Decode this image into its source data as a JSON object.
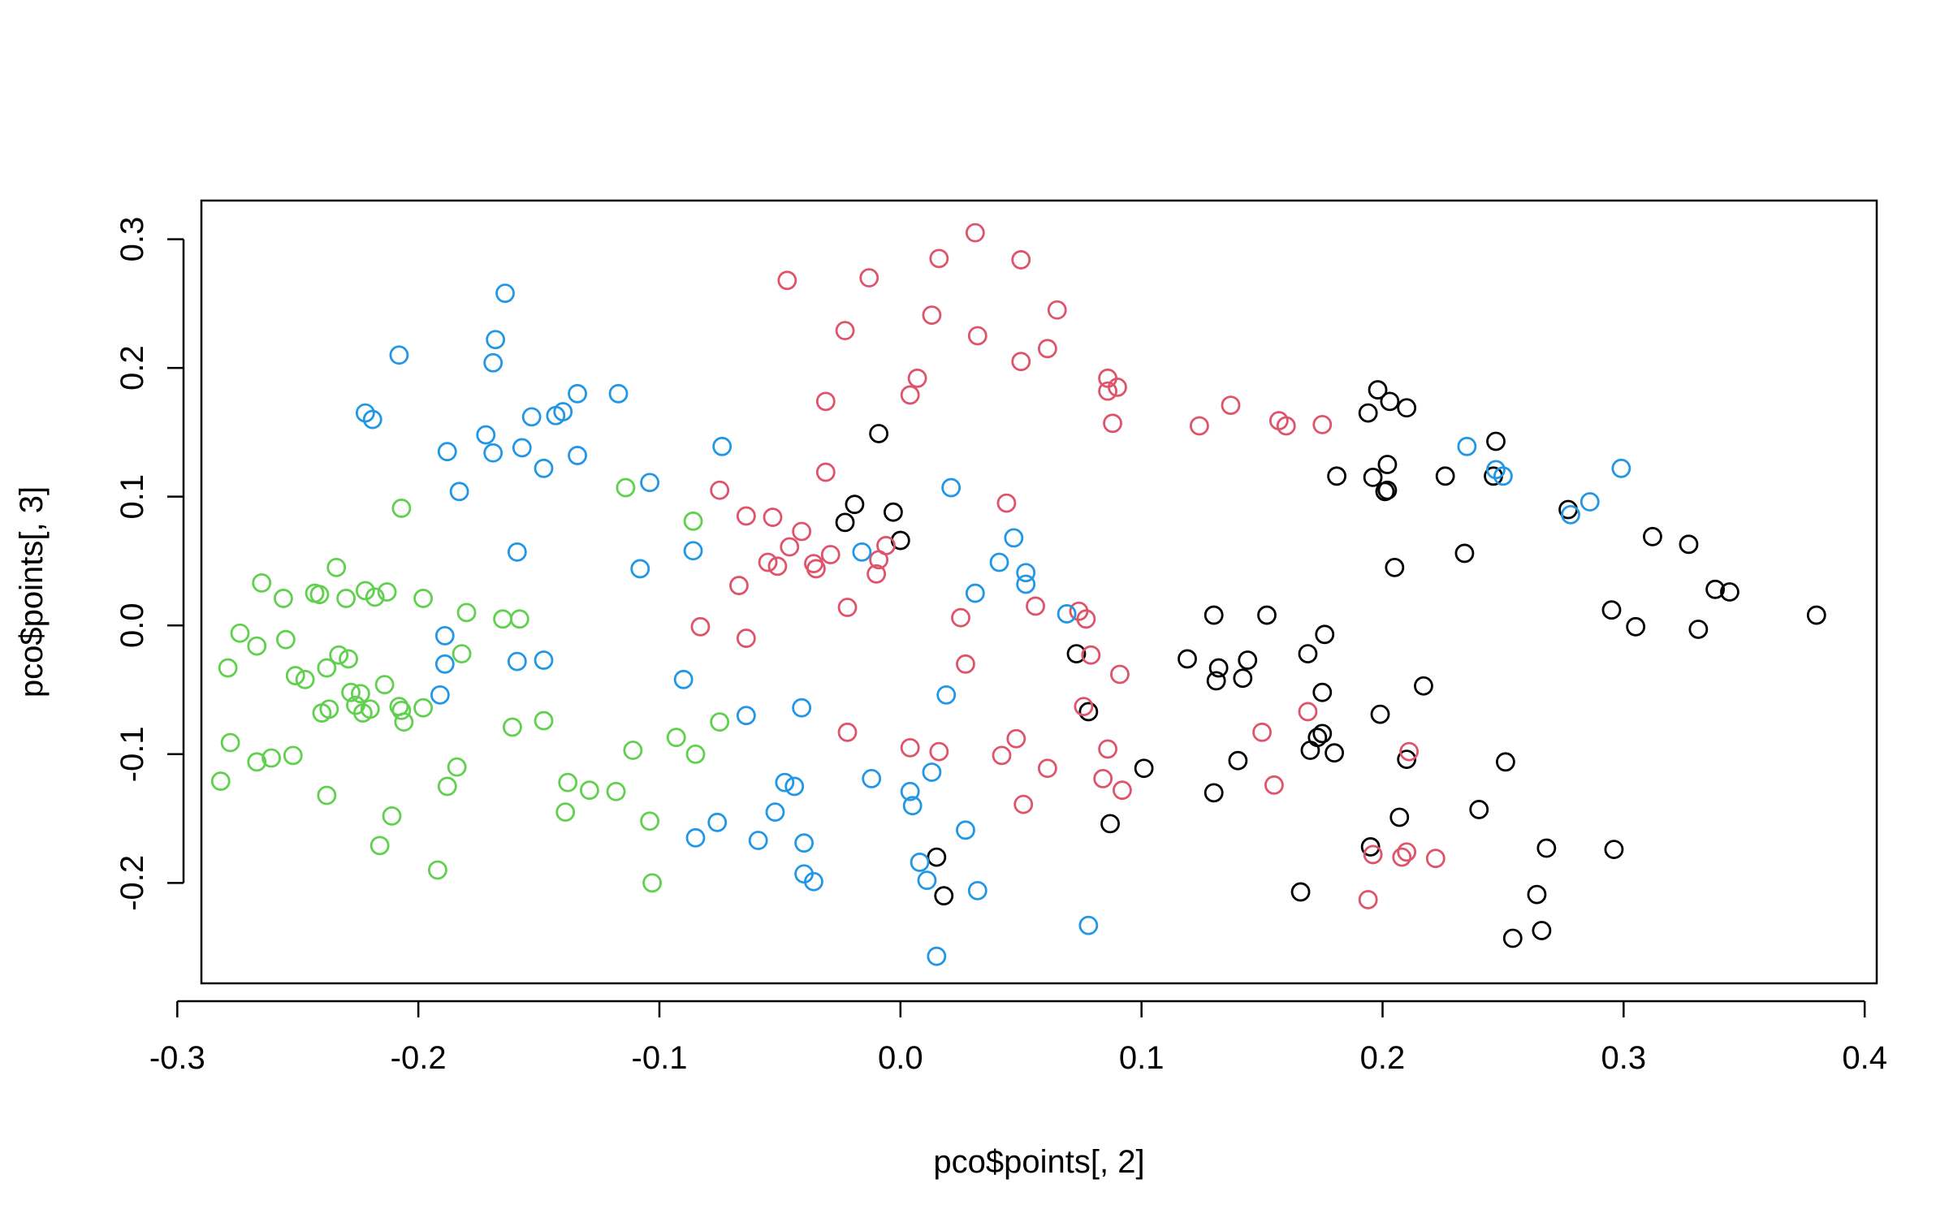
{
  "chart_data": {
    "type": "scatter",
    "title": "",
    "xlabel": "pco$points[, 2]",
    "ylabel": "pco$points[, 3]",
    "xlim": [
      -0.29,
      0.405
    ],
    "ylim": [
      -0.278,
      0.33
    ],
    "x_ticks": [
      -0.3,
      -0.2,
      -0.1,
      0.0,
      0.1,
      0.2,
      0.3,
      0.4
    ],
    "x_tick_labels": [
      "-0.3",
      "-0.2",
      "-0.1",
      "0.0",
      "0.1",
      "0.2",
      "0.3",
      "0.4"
    ],
    "y_ticks": [
      -0.2,
      -0.1,
      0.0,
      0.1,
      0.2,
      0.3
    ],
    "y_tick_labels": [
      "-0.2",
      "-0.1",
      "0.0",
      "0.1",
      "0.2",
      "0.3"
    ],
    "grid": false,
    "legend": "none",
    "marker": "open-circle",
    "series": [
      {
        "color": "#000000",
        "points": [
          [
            -0.009,
            0.149
          ],
          [
            -0.023,
            0.08
          ],
          [
            -0.019,
            0.094
          ],
          [
            -0.003,
            0.088
          ],
          [
            0.0,
            0.066
          ],
          [
            0.015,
            -0.18
          ],
          [
            0.018,
            -0.21
          ],
          [
            0.073,
            -0.022
          ],
          [
            0.078,
            -0.067
          ],
          [
            0.087,
            -0.154
          ],
          [
            0.101,
            -0.111
          ],
          [
            0.119,
            -0.026
          ],
          [
            0.13,
            0.008
          ],
          [
            0.131,
            -0.043
          ],
          [
            0.132,
            -0.033
          ],
          [
            0.13,
            -0.13
          ],
          [
            0.14,
            -0.105
          ],
          [
            0.142,
            -0.041
          ],
          [
            0.144,
            -0.027
          ],
          [
            0.152,
            0.008
          ],
          [
            0.166,
            -0.207
          ],
          [
            0.169,
            -0.022
          ],
          [
            0.17,
            -0.097
          ],
          [
            0.173,
            -0.087
          ],
          [
            0.175,
            -0.052
          ],
          [
            0.175,
            -0.084
          ],
          [
            0.176,
            -0.007
          ],
          [
            0.18,
            -0.099
          ],
          [
            0.181,
            0.116
          ],
          [
            0.194,
            0.165
          ],
          [
            0.196,
            0.115
          ],
          [
            0.198,
            0.183
          ],
          [
            0.201,
            0.104
          ],
          [
            0.202,
            0.105
          ],
          [
            0.202,
            0.125
          ],
          [
            0.203,
            0.174
          ],
          [
            0.205,
            0.045
          ],
          [
            0.21,
            0.169
          ],
          [
            0.199,
            -0.069
          ],
          [
            0.207,
            -0.149
          ],
          [
            0.21,
            -0.104
          ],
          [
            0.217,
            -0.047
          ],
          [
            0.226,
            0.116
          ],
          [
            0.234,
            0.056
          ],
          [
            0.24,
            -0.143
          ],
          [
            0.246,
            0.116
          ],
          [
            0.247,
            0.143
          ],
          [
            0.251,
            -0.106
          ],
          [
            0.254,
            -0.243
          ],
          [
            0.264,
            -0.209
          ],
          [
            0.266,
            -0.237
          ],
          [
            0.268,
            -0.173
          ],
          [
            0.277,
            0.09
          ],
          [
            0.295,
            0.012
          ],
          [
            0.296,
            -0.174
          ],
          [
            0.305,
            -0.001
          ],
          [
            0.312,
            0.069
          ],
          [
            0.327,
            0.063
          ],
          [
            0.331,
            -0.003
          ],
          [
            0.338,
            0.028
          ],
          [
            0.344,
            0.026
          ],
          [
            0.38,
            0.008
          ],
          [
            0.195,
            -0.172
          ]
        ]
      },
      {
        "color": "#df536b",
        "points": [
          [
            -0.047,
            0.268
          ],
          [
            -0.013,
            0.27
          ],
          [
            -0.023,
            0.229
          ],
          [
            0.016,
            0.285
          ],
          [
            0.031,
            0.305
          ],
          [
            0.05,
            0.284
          ],
          [
            0.013,
            0.241
          ],
          [
            0.032,
            0.225
          ],
          [
            0.065,
            0.245
          ],
          [
            0.061,
            0.215
          ],
          [
            0.05,
            0.205
          ],
          [
            0.007,
            0.192
          ],
          [
            0.004,
            0.179
          ],
          [
            -0.031,
            0.174
          ],
          [
            0.086,
            0.192
          ],
          [
            0.09,
            0.185
          ],
          [
            0.086,
            0.182
          ],
          [
            0.088,
            0.157
          ],
          [
            0.124,
            0.155
          ],
          [
            0.137,
            0.171
          ],
          [
            0.157,
            0.159
          ],
          [
            0.16,
            0.155
          ],
          [
            0.175,
            0.156
          ],
          [
            -0.031,
            0.119
          ],
          [
            -0.075,
            0.105
          ],
          [
            -0.064,
            0.085
          ],
          [
            -0.053,
            0.084
          ],
          [
            -0.041,
            0.073
          ],
          [
            -0.046,
            0.061
          ],
          [
            -0.029,
            0.055
          ],
          [
            -0.055,
            0.049
          ],
          [
            -0.051,
            0.046
          ],
          [
            -0.036,
            0.048
          ],
          [
            -0.035,
            0.044
          ],
          [
            -0.009,
            0.051
          ],
          [
            -0.01,
            0.04
          ],
          [
            -0.006,
            0.062
          ],
          [
            -0.067,
            0.031
          ],
          [
            -0.022,
            0.014
          ],
          [
            -0.083,
            -0.001
          ],
          [
            -0.064,
            -0.01
          ],
          [
            0.044,
            0.095
          ],
          [
            0.056,
            0.015
          ],
          [
            0.025,
            0.006
          ],
          [
            0.074,
            0.011
          ],
          [
            0.077,
            0.005
          ],
          [
            0.079,
            -0.023
          ],
          [
            0.027,
            -0.03
          ],
          [
            0.091,
            -0.038
          ],
          [
            0.076,
            -0.063
          ],
          [
            -0.022,
            -0.083
          ],
          [
            0.004,
            -0.095
          ],
          [
            0.016,
            -0.098
          ],
          [
            0.042,
            -0.101
          ],
          [
            0.048,
            -0.088
          ],
          [
            0.061,
            -0.111
          ],
          [
            0.051,
            -0.139
          ],
          [
            0.084,
            -0.119
          ],
          [
            0.092,
            -0.128
          ],
          [
            0.086,
            -0.096
          ],
          [
            0.15,
            -0.083
          ],
          [
            0.155,
            -0.124
          ],
          [
            0.169,
            -0.067
          ],
          [
            0.194,
            -0.213
          ],
          [
            0.196,
            -0.178
          ],
          [
            0.208,
            -0.18
          ],
          [
            0.21,
            -0.176
          ],
          [
            0.211,
            -0.098
          ],
          [
            0.222,
            -0.181
          ]
        ]
      },
      {
        "color": "#61d04f",
        "points": [
          [
            -0.282,
            -0.121
          ],
          [
            -0.279,
            -0.033
          ],
          [
            -0.278,
            -0.091
          ],
          [
            -0.274,
            -0.006
          ],
          [
            -0.267,
            -0.016
          ],
          [
            -0.267,
            -0.106
          ],
          [
            -0.265,
            0.033
          ],
          [
            -0.261,
            -0.103
          ],
          [
            -0.256,
            0.021
          ],
          [
            -0.255,
            -0.011
          ],
          [
            -0.252,
            -0.101
          ],
          [
            -0.251,
            -0.039
          ],
          [
            -0.247,
            -0.042
          ],
          [
            -0.243,
            0.025
          ],
          [
            -0.241,
            0.024
          ],
          [
            -0.24,
            -0.068
          ],
          [
            -0.238,
            -0.033
          ],
          [
            -0.237,
            -0.065
          ],
          [
            -0.238,
            -0.132
          ],
          [
            -0.234,
            0.045
          ],
          [
            -0.233,
            -0.023
          ],
          [
            -0.23,
            0.021
          ],
          [
            -0.229,
            -0.026
          ],
          [
            -0.228,
            -0.052
          ],
          [
            -0.226,
            -0.062
          ],
          [
            -0.224,
            -0.053
          ],
          [
            -0.223,
            -0.068
          ],
          [
            -0.222,
            0.027
          ],
          [
            -0.218,
            0.022
          ],
          [
            -0.214,
            -0.046
          ],
          [
            -0.213,
            0.026
          ],
          [
            -0.211,
            -0.148
          ],
          [
            -0.216,
            -0.171
          ],
          [
            -0.208,
            -0.063
          ],
          [
            -0.207,
            -0.066
          ],
          [
            -0.207,
            0.091
          ],
          [
            -0.206,
            -0.075
          ],
          [
            -0.198,
            0.021
          ],
          [
            -0.198,
            -0.064
          ],
          [
            -0.192,
            -0.19
          ],
          [
            -0.188,
            -0.125
          ],
          [
            -0.184,
            -0.11
          ],
          [
            -0.182,
            -0.022
          ],
          [
            -0.18,
            0.01
          ],
          [
            -0.165,
            0.005
          ],
          [
            -0.161,
            -0.079
          ],
          [
            -0.158,
            0.005
          ],
          [
            -0.148,
            -0.074
          ],
          [
            -0.139,
            -0.145
          ],
          [
            -0.138,
            -0.122
          ],
          [
            -0.129,
            -0.128
          ],
          [
            -0.118,
            -0.129
          ],
          [
            -0.114,
            0.107
          ],
          [
            -0.111,
            -0.097
          ],
          [
            -0.104,
            -0.152
          ],
          [
            -0.103,
            -0.2
          ],
          [
            -0.093,
            -0.087
          ],
          [
            -0.086,
            0.081
          ],
          [
            -0.085,
            -0.1
          ],
          [
            -0.075,
            -0.075
          ],
          [
            -0.22,
            -0.065
          ]
        ]
      },
      {
        "color": "#2297e6",
        "points": [
          [
            -0.164,
            0.258
          ],
          [
            -0.168,
            0.222
          ],
          [
            -0.208,
            0.21
          ],
          [
            -0.169,
            0.204
          ],
          [
            -0.222,
            0.165
          ],
          [
            -0.219,
            0.16
          ],
          [
            -0.153,
            0.162
          ],
          [
            -0.143,
            0.163
          ],
          [
            -0.14,
            0.166
          ],
          [
            -0.134,
            0.18
          ],
          [
            -0.117,
            0.18
          ],
          [
            -0.172,
            0.148
          ],
          [
            -0.188,
            0.135
          ],
          [
            -0.169,
            0.134
          ],
          [
            -0.157,
            0.138
          ],
          [
            -0.134,
            0.132
          ],
          [
            -0.148,
            0.122
          ],
          [
            -0.183,
            0.104
          ],
          [
            -0.104,
            0.111
          ],
          [
            -0.074,
            0.139
          ],
          [
            -0.159,
            0.057
          ],
          [
            -0.108,
            0.044
          ],
          [
            -0.086,
            0.058
          ],
          [
            -0.016,
            0.057
          ],
          [
            0.021,
            0.107
          ],
          [
            0.047,
            0.068
          ],
          [
            0.041,
            0.049
          ],
          [
            0.052,
            0.041
          ],
          [
            0.052,
            0.032
          ],
          [
            0.031,
            0.025
          ],
          [
            0.069,
            0.009
          ],
          [
            -0.189,
            -0.008
          ],
          [
            -0.159,
            -0.028
          ],
          [
            -0.148,
            -0.027
          ],
          [
            -0.189,
            -0.03
          ],
          [
            -0.191,
            -0.054
          ],
          [
            -0.09,
            -0.042
          ],
          [
            -0.064,
            -0.07
          ],
          [
            -0.041,
            -0.064
          ],
          [
            0.019,
            -0.054
          ],
          [
            -0.012,
            -0.119
          ],
          [
            0.004,
            -0.129
          ],
          [
            0.013,
            -0.114
          ],
          [
            -0.048,
            -0.122
          ],
          [
            -0.044,
            -0.125
          ],
          [
            0.005,
            -0.14
          ],
          [
            -0.052,
            -0.145
          ],
          [
            -0.076,
            -0.153
          ],
          [
            -0.085,
            -0.165
          ],
          [
            -0.059,
            -0.167
          ],
          [
            -0.04,
            -0.169
          ],
          [
            0.027,
            -0.159
          ],
          [
            0.008,
            -0.184
          ],
          [
            -0.04,
            -0.193
          ],
          [
            -0.036,
            -0.199
          ],
          [
            0.011,
            -0.198
          ],
          [
            0.032,
            -0.206
          ],
          [
            0.078,
            -0.233
          ],
          [
            0.015,
            -0.257
          ],
          [
            0.235,
            0.139
          ],
          [
            0.247,
            0.121
          ],
          [
            0.25,
            0.116
          ],
          [
            0.278,
            0.086
          ],
          [
            0.286,
            0.096
          ],
          [
            0.299,
            0.122
          ]
        ]
      }
    ]
  }
}
